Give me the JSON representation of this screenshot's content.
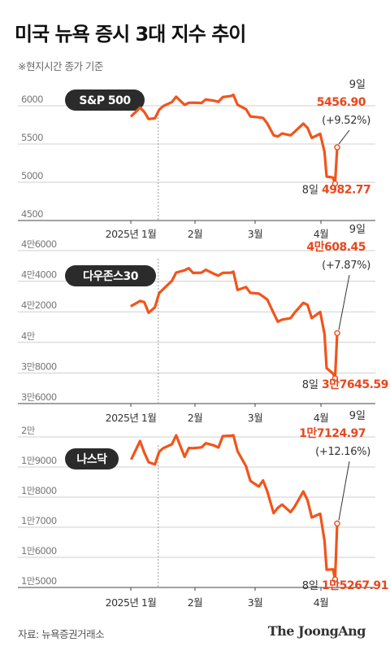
{
  "title": "미국 뉴욕 증시 3대 지수 추이",
  "note": "※현지시간 종가 기준",
  "source": "자료: 뉴욕증권거래소",
  "brand": "The JoongAng",
  "colors": {
    "line": "#f2541b",
    "accent": "#e8471c",
    "badge": "#2b2b2b",
    "grid": "#cfcfcf"
  },
  "chart_data": [
    {
      "type": "line",
      "title": "S&P 500",
      "x_ticks": [
        "2025년 1월",
        "2월",
        "3월",
        "4월"
      ],
      "y_ticks": [
        "6000",
        "5500",
        "5000",
        "4500"
      ],
      "ylim": [
        4500,
        6200
      ],
      "x": [
        "2025-01-02",
        "2025-01-06",
        "2025-01-08",
        "2025-01-10",
        "2025-01-13",
        "2025-01-15",
        "2025-01-17",
        "2025-01-21",
        "2025-01-23",
        "2025-01-27",
        "2025-01-29",
        "2025-01-31",
        "2025-02-04",
        "2025-02-06",
        "2025-02-10",
        "2025-02-12",
        "2025-02-14",
        "2025-02-18",
        "2025-02-19",
        "2025-02-21",
        "2025-02-25",
        "2025-02-27",
        "2025-03-03",
        "2025-03-05",
        "2025-03-07",
        "2025-03-10",
        "2025-03-12",
        "2025-03-14",
        "2025-03-18",
        "2025-03-20",
        "2025-03-24",
        "2025-03-26",
        "2025-03-28",
        "2025-04-01",
        "2025-04-03",
        "2025-04-04",
        "2025-04-07",
        "2025-04-08",
        "2025-04-09"
      ],
      "values": [
        5868,
        5975,
        5919,
        5827,
        5836,
        5949,
        5997,
        6049,
        6118,
        6012,
        6039,
        6040,
        6037,
        6083,
        6066,
        6051,
        6114,
        6129,
        6144,
        6013,
        5955,
        5861,
        5849,
        5842,
        5770,
        5614,
        5599,
        5638,
        5614,
        5662,
        5767,
        5712,
        5580,
        5633,
        5396,
        5074,
        5062,
        4982.77,
        5456.9
      ],
      "annotations": {
        "end_day": "9일",
        "end_value": "5456.90",
        "end_change": "(+9.52%)",
        "low_day": "8일",
        "low_value": "4982.77"
      }
    },
    {
      "type": "line",
      "title": "다우존스30",
      "x_ticks": [
        "2025년 1월",
        "2월",
        "3월",
        "4월"
      ],
      "y_ticks": [
        "4만6000",
        "4만4000",
        "4만2000",
        "4만",
        "3만8000",
        "3만6000"
      ],
      "ylim": [
        36000,
        46000
      ],
      "x": [
        "2025-01-02",
        "2025-01-06",
        "2025-01-08",
        "2025-01-10",
        "2025-01-13",
        "2025-01-15",
        "2025-01-17",
        "2025-01-21",
        "2025-01-23",
        "2025-01-27",
        "2025-01-29",
        "2025-01-31",
        "2025-02-04",
        "2025-02-06",
        "2025-02-10",
        "2025-02-12",
        "2025-02-14",
        "2025-02-18",
        "2025-02-19",
        "2025-02-21",
        "2025-02-25",
        "2025-02-27",
        "2025-03-03",
        "2025-03-05",
        "2025-03-07",
        "2025-03-10",
        "2025-03-12",
        "2025-03-14",
        "2025-03-18",
        "2025-03-20",
        "2025-03-24",
        "2025-03-26",
        "2025-03-28",
        "2025-04-01",
        "2025-04-03",
        "2025-04-04",
        "2025-04-07",
        "2025-04-08",
        "2025-04-09"
      ],
      "values": [
        42392,
        42707,
        42635,
        41938,
        42297,
        43221,
        43488,
        44025,
        44565,
        44714,
        44850,
        44545,
        44556,
        44747,
        44471,
        44369,
        44546,
        44556,
        44627,
        43428,
        43621,
        43239,
        43191,
        43006,
        42801,
        41912,
        41350,
        41488,
        41581,
        41953,
        42583,
        42454,
        41583,
        41989,
        40545,
        38314,
        37966,
        37645.59,
        40608.45
      ],
      "annotations": {
        "end_day": "9일",
        "end_value": "4만608.45",
        "end_change": "(+7.87%)",
        "low_day": "8일",
        "low_value": "3만7645.59"
      }
    },
    {
      "type": "line",
      "title": "나스닥",
      "x_ticks": [
        "2025년 1월",
        "2월",
        "3월",
        "4월"
      ],
      "y_ticks": [
        "2만",
        "1만9000",
        "1만8000",
        "1만7000",
        "1만6000",
        "1만5000"
      ],
      "ylim": [
        15000,
        20000
      ],
      "x": [
        "2025-01-02",
        "2025-01-06",
        "2025-01-08",
        "2025-01-10",
        "2025-01-13",
        "2025-01-15",
        "2025-01-17",
        "2025-01-21",
        "2025-01-23",
        "2025-01-27",
        "2025-01-29",
        "2025-01-31",
        "2025-02-04",
        "2025-02-06",
        "2025-02-10",
        "2025-02-12",
        "2025-02-14",
        "2025-02-18",
        "2025-02-19",
        "2025-02-21",
        "2025-02-25",
        "2025-02-27",
        "2025-03-03",
        "2025-03-05",
        "2025-03-07",
        "2025-03-10",
        "2025-03-12",
        "2025-03-14",
        "2025-03-18",
        "2025-03-20",
        "2025-03-24",
        "2025-03-26",
        "2025-03-28",
        "2025-04-01",
        "2025-04-03",
        "2025-04-04",
        "2025-04-07",
        "2025-04-08",
        "2025-04-09"
      ],
      "values": [
        19280,
        19864,
        19478,
        19162,
        19088,
        19511,
        19630,
        19757,
        20053,
        19341,
        19632,
        19627,
        19654,
        19791,
        19714,
        19649,
        20026,
        20041,
        20056,
        19525,
        19026,
        18544,
        18350,
        18553,
        18196,
        17468,
        17648,
        17754,
        17504,
        17691,
        18189,
        17899,
        17323,
        17450,
        16550,
        15588,
        15603,
        15267.91,
        17124.97
      ],
      "annotations": {
        "end_day": "9일",
        "end_value": "1만7124.97",
        "end_change": "(+12.16%)",
        "low_day": "8일",
        "low_value": "1만5267.91"
      }
    }
  ]
}
